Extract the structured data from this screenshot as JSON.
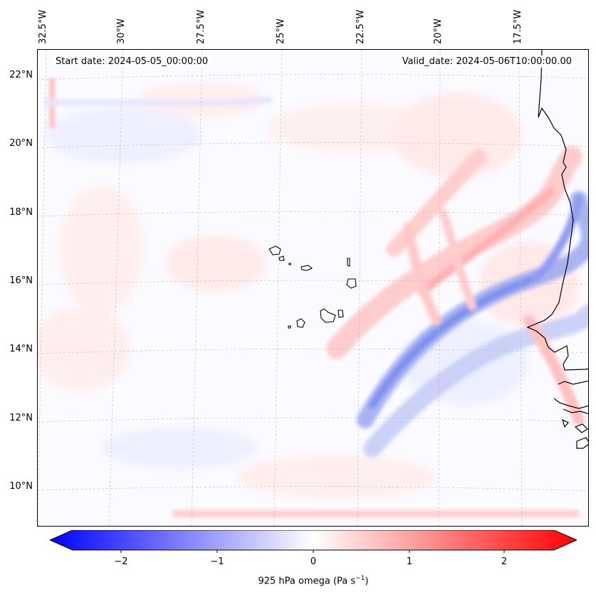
{
  "map": {
    "start_label": "Start date: 2024-05-05_00:00:00",
    "valid_label": "Valid_date: 2024-05-06T10:00:00.00",
    "lon_ticks": [
      "32.5°W",
      "30°W",
      "27.5°W",
      "25°W",
      "22.5°W",
      "20°W",
      "17.5°W"
    ],
    "lat_ticks": [
      "22°N",
      "20°N",
      "18°N",
      "16°N",
      "14°N",
      "12°N",
      "10°N"
    ],
    "region": "Cabo Verde / West African coast",
    "field": "925 hPa vertical velocity (omega)"
  },
  "colorbar": {
    "ticks": [
      "−2",
      "−1",
      "0",
      "1",
      "2"
    ],
    "label": "925 hPa omega (Pa s",
    "label_sup": "−1",
    "label_end": ")",
    "min": -2.5,
    "max": 2.5,
    "colormap": "bwr",
    "color_neg": "#0000ff",
    "color_zero": "#ffffff",
    "color_pos": "#ff0000"
  }
}
